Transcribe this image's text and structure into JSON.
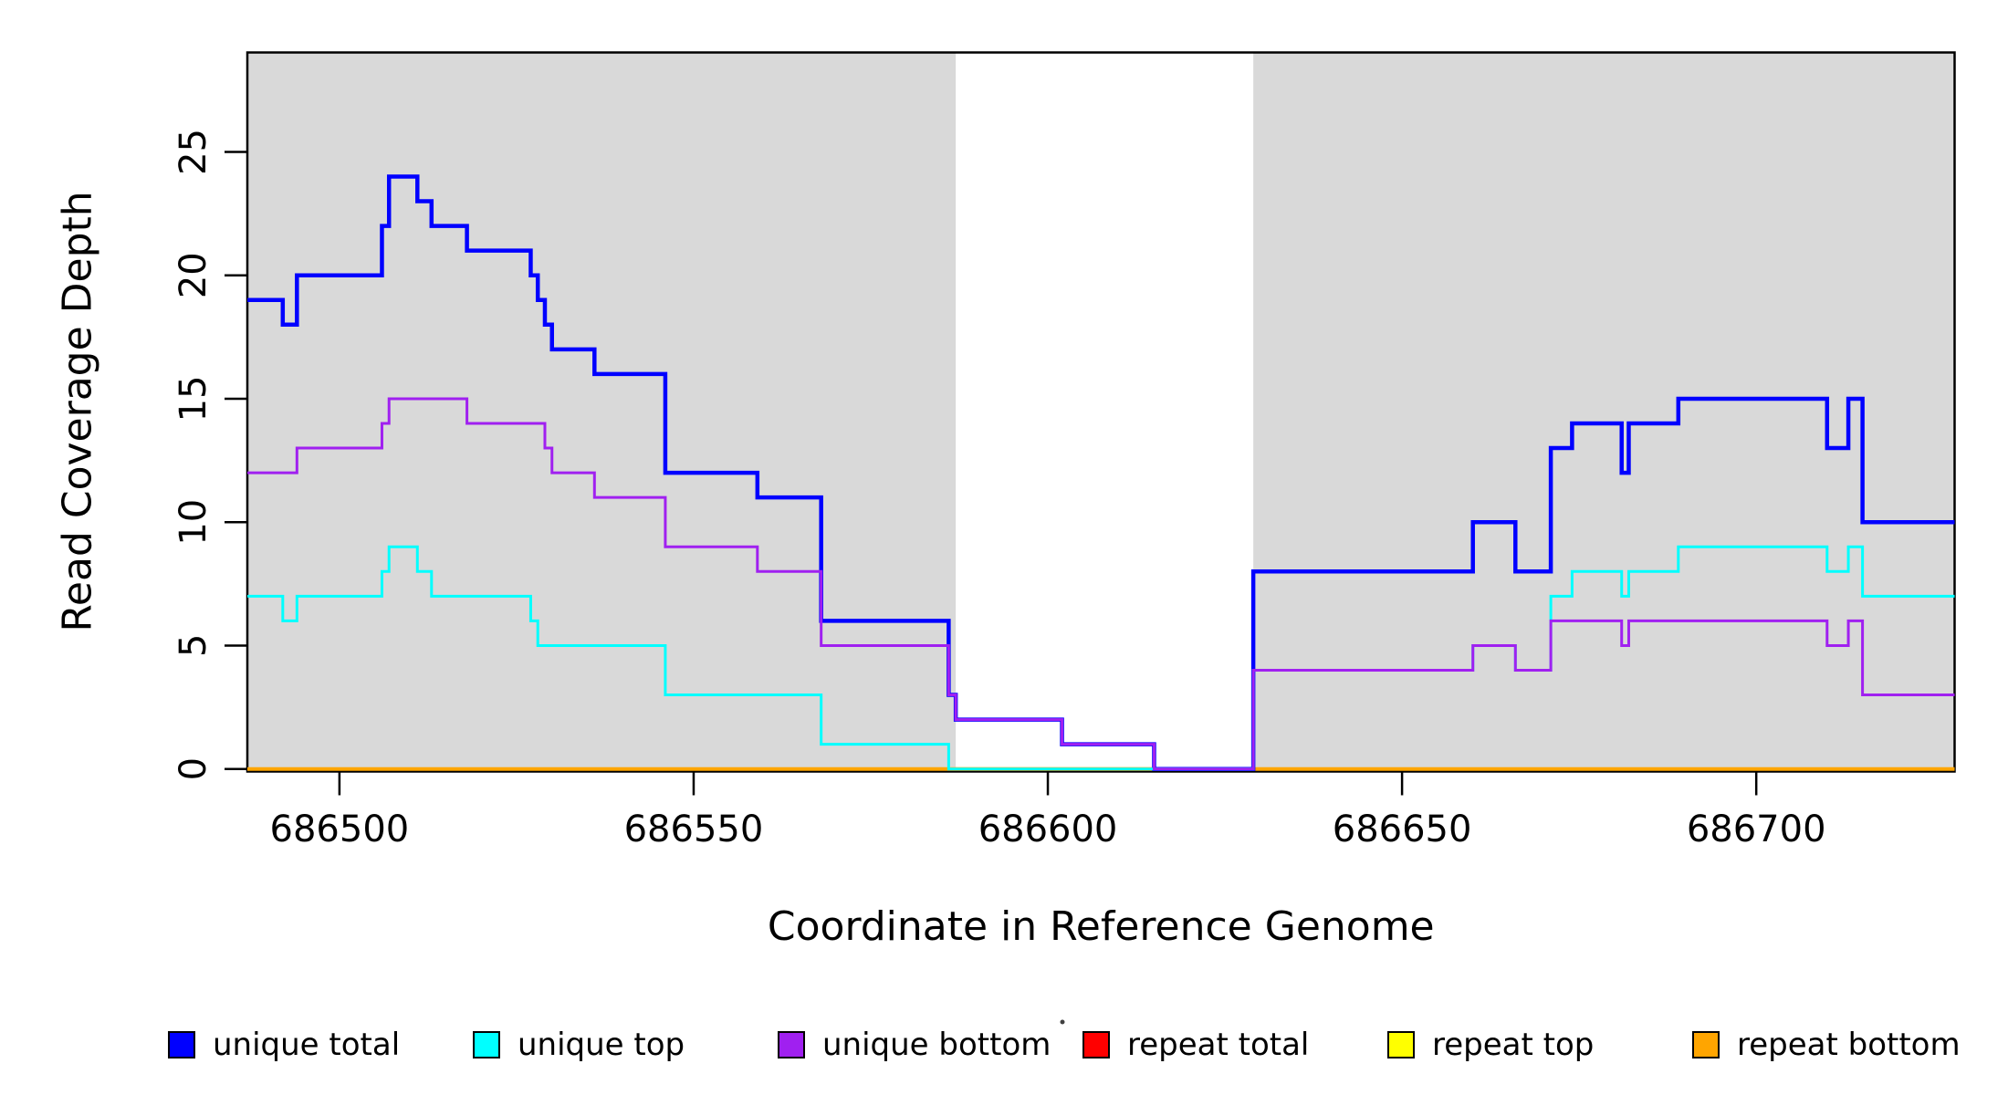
{
  "chart_data": {
    "type": "line",
    "subtype": "step",
    "title": "",
    "xlabel": "Coordinate in Reference Genome",
    "ylabel": "Read Coverage Depth",
    "xlim": [
      686487,
      686728
    ],
    "ylim": [
      0,
      29
    ],
    "grid": false,
    "legend_position": "bottom",
    "background_color": "#ffffff",
    "highlight_color": "#d9d9d9",
    "highlight_regions": [
      [
        686487,
        686587
      ],
      [
        686629,
        686728
      ]
    ],
    "x_ticks": [
      686500,
      686550,
      686600,
      686650,
      686700
    ],
    "x_tick_labels": [
      "686500",
      "686550",
      "686600",
      "686650",
      "686700"
    ],
    "y_ticks": [
      0,
      5,
      10,
      15,
      20,
      25
    ],
    "y_tick_labels": [
      "0",
      "5",
      "10",
      "15",
      "20",
      "25"
    ],
    "draw_order": [
      "repeat total",
      "repeat top",
      "repeat bottom",
      "unique total",
      "unique top",
      "unique bottom"
    ],
    "series": [
      {
        "name": "unique total",
        "color": "#0000ff",
        "line_width": 4.5,
        "points": [
          [
            686487,
            19
          ],
          [
            686492,
            18
          ],
          [
            686494,
            20
          ],
          [
            686506,
            22
          ],
          [
            686507,
            24
          ],
          [
            686511,
            23
          ],
          [
            686513,
            22
          ],
          [
            686518,
            21
          ],
          [
            686527,
            20
          ],
          [
            686528,
            19
          ],
          [
            686529,
            18
          ],
          [
            686530,
            17
          ],
          [
            686536,
            16
          ],
          [
            686546,
            12
          ],
          [
            686559,
            11
          ],
          [
            686568,
            6
          ],
          [
            686586,
            3
          ],
          [
            686587,
            2
          ],
          [
            686602,
            1
          ],
          [
            686615,
            0
          ],
          [
            686629,
            8
          ],
          [
            686660,
            10
          ],
          [
            686666,
            8
          ],
          [
            686671,
            13
          ],
          [
            686674,
            14
          ],
          [
            686681,
            12
          ],
          [
            686682,
            14
          ],
          [
            686689,
            15
          ],
          [
            686710,
            13
          ],
          [
            686713,
            15
          ],
          [
            686715,
            10
          ]
        ]
      },
      {
        "name": "unique top",
        "color": "#00ffff",
        "line_width": 3,
        "points": [
          [
            686487,
            7
          ],
          [
            686492,
            6
          ],
          [
            686494,
            7
          ],
          [
            686506,
            8
          ],
          [
            686507,
            9
          ],
          [
            686511,
            8
          ],
          [
            686513,
            7
          ],
          [
            686527,
            6
          ],
          [
            686528,
            5
          ],
          [
            686546,
            3
          ],
          [
            686568,
            1
          ],
          [
            686586,
            0
          ],
          [
            686629,
            4
          ],
          [
            686660,
            5
          ],
          [
            686666,
            4
          ],
          [
            686671,
            7
          ],
          [
            686674,
            8
          ],
          [
            686681,
            7
          ],
          [
            686682,
            8
          ],
          [
            686689,
            9
          ],
          [
            686710,
            8
          ],
          [
            686713,
            9
          ],
          [
            686715,
            7
          ]
        ]
      },
      {
        "name": "unique bottom",
        "color": "#a020f0",
        "line_width": 3,
        "points": [
          [
            686487,
            12
          ],
          [
            686494,
            13
          ],
          [
            686506,
            14
          ],
          [
            686507,
            15
          ],
          [
            686518,
            14
          ],
          [
            686529,
            13
          ],
          [
            686530,
            12
          ],
          [
            686536,
            11
          ],
          [
            686546,
            9
          ],
          [
            686559,
            8
          ],
          [
            686568,
            5
          ],
          [
            686586,
            3
          ],
          [
            686587,
            2
          ],
          [
            686602,
            1
          ],
          [
            686615,
            0
          ],
          [
            686629,
            4
          ],
          [
            686660,
            5
          ],
          [
            686666,
            4
          ],
          [
            686671,
            6
          ],
          [
            686681,
            5
          ],
          [
            686682,
            6
          ],
          [
            686710,
            5
          ],
          [
            686713,
            6
          ],
          [
            686715,
            3
          ]
        ]
      },
      {
        "name": "repeat total",
        "color": "#ff0000",
        "line_width": 3,
        "points": [
          [
            686487,
            0
          ]
        ]
      },
      {
        "name": "repeat top",
        "color": "#ffff00",
        "line_width": 3,
        "points": [
          [
            686487,
            0
          ]
        ]
      },
      {
        "name": "repeat bottom",
        "color": "#ffa500",
        "line_width": 4,
        "points": [
          [
            686487,
            0
          ]
        ]
      }
    ],
    "legend": [
      {
        "label": "unique total",
        "color": "#0000ff"
      },
      {
        "label": "unique top",
        "color": "#00ffff"
      },
      {
        "label": "unique bottom",
        "color": "#a020f0"
      },
      {
        "label": "repeat total",
        "color": "#ff0000"
      },
      {
        "label": "repeat top",
        "color": "#ffff00"
      },
      {
        "label": "repeat bottom",
        "color": "#ffa500"
      }
    ]
  }
}
